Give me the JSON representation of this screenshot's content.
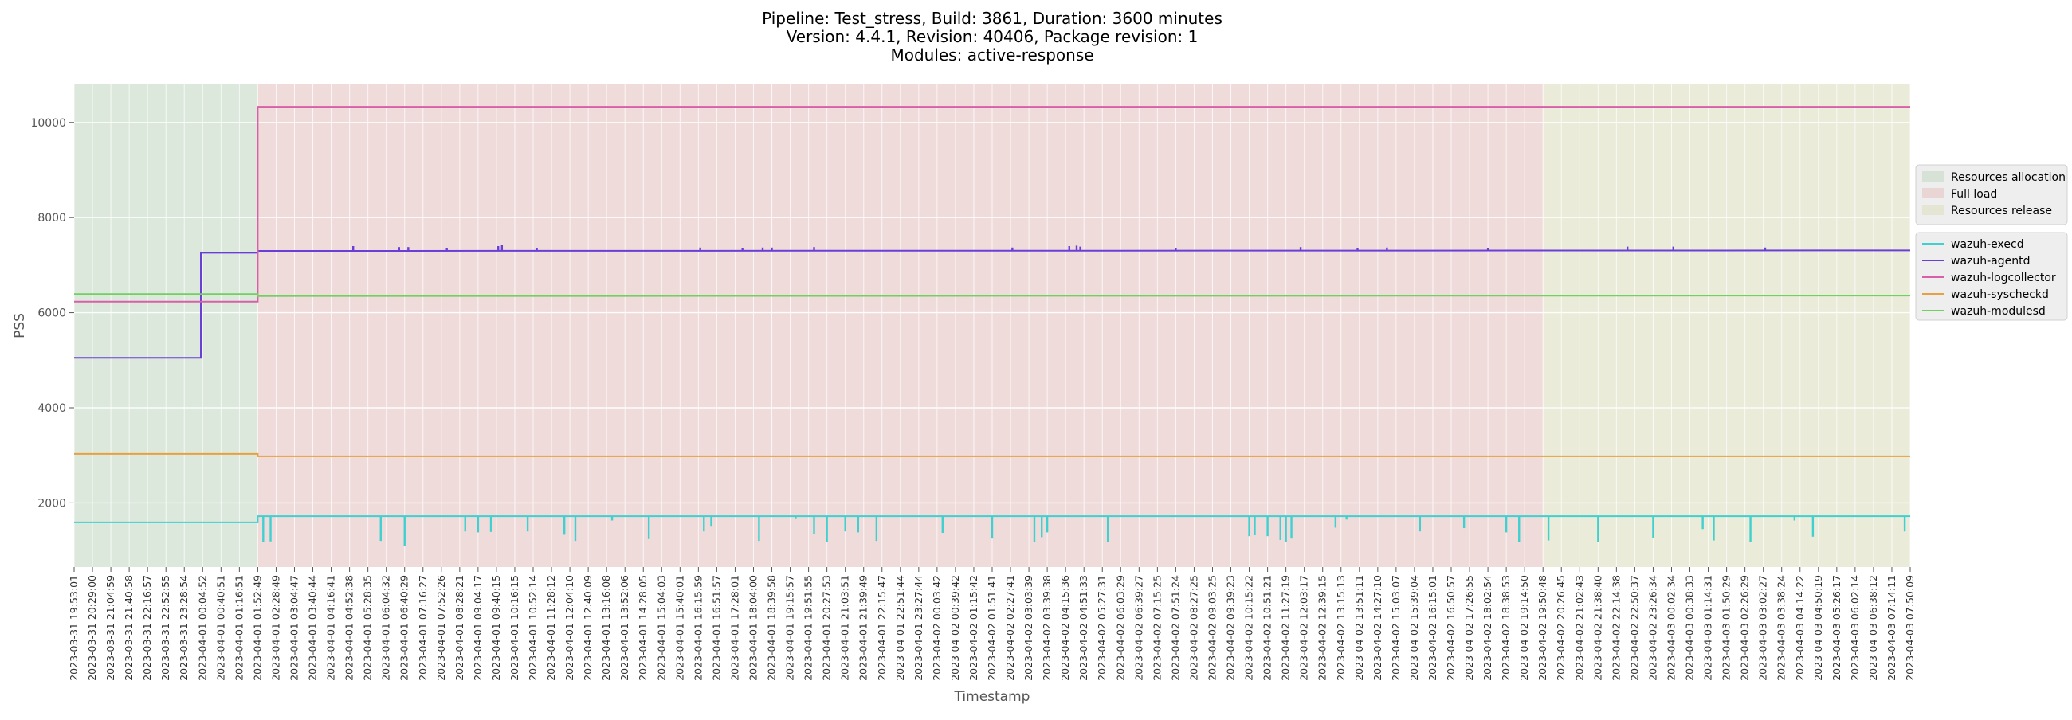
{
  "chart_data": {
    "type": "line",
    "title_lines": [
      "Pipeline: Test_stress, Build: 3861, Duration: 3600 minutes",
      "Version: 4.4.1, Revision: 40406, Package revision: 1",
      "Modules: active-response"
    ],
    "xlabel": "Timestamp",
    "ylabel": "PSS",
    "ylim": [
      650,
      10800
    ],
    "yticks": [
      2000,
      4000,
      6000,
      8000,
      10000
    ],
    "grid": true,
    "legend_placement": "right",
    "x_ticks": [
      "2023-03-31 19:53:01",
      "2023-03-31 20:29:00",
      "2023-03-31 21:04:59",
      "2023-03-31 21:40:58",
      "2023-03-31 22:16:57",
      "2023-03-31 22:52:55",
      "2023-03-31 23:28:54",
      "2023-04-01 00:04:52",
      "2023-04-01 00:40:51",
      "2023-04-01 01:16:51",
      "2023-04-01 01:52:49",
      "2023-04-01 02:28:49",
      "2023-04-01 03:04:47",
      "2023-04-01 03:40:44",
      "2023-04-01 04:16:41",
      "2023-04-01 04:52:38",
      "2023-04-01 05:28:35",
      "2023-04-01 06:04:32",
      "2023-04-01 06:40:29",
      "2023-04-01 07:16:27",
      "2023-04-01 07:52:26",
      "2023-04-01 08:28:21",
      "2023-04-01 09:04:17",
      "2023-04-01 09:40:15",
      "2023-04-01 10:16:15",
      "2023-04-01 10:52:14",
      "2023-04-01 11:28:12",
      "2023-04-01 12:04:10",
      "2023-04-01 12:40:09",
      "2023-04-01 13:16:08",
      "2023-04-01 13:52:06",
      "2023-04-01 14:28:05",
      "2023-04-01 15:04:03",
      "2023-04-01 15:40:01",
      "2023-04-01 16:15:59",
      "2023-04-01 16:51:57",
      "2023-04-01 17:28:01",
      "2023-04-01 18:04:00",
      "2023-04-01 18:39:58",
      "2023-04-01 19:15:57",
      "2023-04-01 19:51:55",
      "2023-04-01 20:27:53",
      "2023-04-01 21:03:51",
      "2023-04-01 21:39:49",
      "2023-04-01 22:15:47",
      "2023-04-01 22:51:44",
      "2023-04-01 23:27:44",
      "2023-04-02 00:03:42",
      "2023-04-02 00:39:42",
      "2023-04-02 01:15:42",
      "2023-04-02 01:51:41",
      "2023-04-02 02:27:41",
      "2023-04-02 03:03:39",
      "2023-04-02 03:39:38",
      "2023-04-02 04:15:36",
      "2023-04-02 04:51:33",
      "2023-04-02 05:27:31",
      "2023-04-02 06:03:29",
      "2023-04-02 06:39:27",
      "2023-04-02 07:15:25",
      "2023-04-02 07:51:24",
      "2023-04-02 08:27:25",
      "2023-04-02 09:03:25",
      "2023-04-02 09:39:23",
      "2023-04-02 10:15:22",
      "2023-04-02 10:51:21",
      "2023-04-02 11:27:19",
      "2023-04-02 12:03:17",
      "2023-04-02 12:39:15",
      "2023-04-02 13:15:13",
      "2023-04-02 13:51:11",
      "2023-04-02 14:27:10",
      "2023-04-02 15:03:07",
      "2023-04-02 15:39:04",
      "2023-04-02 16:15:01",
      "2023-04-02 16:50:57",
      "2023-04-02 17:26:55",
      "2023-04-02 18:02:54",
      "2023-04-02 18:38:53",
      "2023-04-02 19:14:50",
      "2023-04-02 19:50:48",
      "2023-04-02 20:26:45",
      "2023-04-02 21:02:43",
      "2023-04-02 21:38:40",
      "2023-04-02 22:14:38",
      "2023-04-02 22:50:37",
      "2023-04-02 23:26:34",
      "2023-04-03 00:02:34",
      "2023-04-03 00:38:33",
      "2023-04-03 01:14:31",
      "2023-04-03 01:50:29",
      "2023-04-03 02:26:29",
      "2023-04-03 03:02:27",
      "2023-04-03 03:38:24",
      "2023-04-03 04:14:22",
      "2023-04-03 04:50:19",
      "2023-04-03 05:26:17",
      "2023-04-03 06:02:14",
      "2023-04-03 06:38:12",
      "2023-04-03 07:14:11",
      "2023-04-03 07:50:09"
    ],
    "phases": [
      {
        "name": "Resources allocation",
        "start_tick": 0,
        "end_tick": 10,
        "color": "#c8dcc8"
      },
      {
        "name": "Full load",
        "start_tick": 10,
        "end_tick": 80,
        "color": "#e8c8c8"
      },
      {
        "name": "Resources release",
        "start_tick": 80,
        "end_tick": 100,
        "color": "#e0e0c4"
      }
    ],
    "series": [
      {
        "name": "wazuh-execd",
        "color": "#40d0d0",
        "points": [
          [
            0,
            1590
          ],
          [
            10,
            1590
          ],
          [
            10,
            1720
          ],
          [
            100,
            1720
          ]
        ],
        "dips": [
          [
            10.3,
            1180
          ],
          [
            10.7,
            1190
          ],
          [
            16.7,
            1200
          ],
          [
            18.0,
            1100
          ],
          [
            21.3,
            1400
          ],
          [
            22.0,
            1380
          ],
          [
            22.7,
            1390
          ],
          [
            24.7,
            1400
          ],
          [
            26.7,
            1330
          ],
          [
            27.3,
            1200
          ],
          [
            29.3,
            1630
          ],
          [
            31.3,
            1240
          ],
          [
            34.3,
            1400
          ],
          [
            34.7,
            1500
          ],
          [
            37.3,
            1200
          ],
          [
            39.3,
            1660
          ],
          [
            40.3,
            1340
          ],
          [
            41.0,
            1180
          ],
          [
            42.0,
            1400
          ],
          [
            42.7,
            1380
          ],
          [
            43.7,
            1200
          ],
          [
            47.3,
            1370
          ],
          [
            50.0,
            1250
          ],
          [
            52.3,
            1170
          ],
          [
            52.7,
            1280
          ],
          [
            53.0,
            1380
          ],
          [
            56.3,
            1170
          ],
          [
            64.0,
            1300
          ],
          [
            64.3,
            1320
          ],
          [
            65.0,
            1300
          ],
          [
            65.7,
            1220
          ],
          [
            66.0,
            1180
          ],
          [
            66.3,
            1250
          ],
          [
            68.7,
            1480
          ],
          [
            69.3,
            1650
          ],
          [
            73.3,
            1400
          ],
          [
            75.7,
            1470
          ],
          [
            78.0,
            1380
          ],
          [
            78.7,
            1180
          ],
          [
            80.3,
            1210
          ],
          [
            83.0,
            1180
          ],
          [
            86.0,
            1270
          ],
          [
            88.7,
            1450
          ],
          [
            89.3,
            1210
          ],
          [
            91.3,
            1180
          ],
          [
            93.7,
            1630
          ],
          [
            94.7,
            1290
          ],
          [
            99.7,
            1400
          ]
        ]
      },
      {
        "name": "wazuh-agentd",
        "color": "#6a3fd8",
        "points": [
          [
            0,
            5050
          ],
          [
            6.9,
            5050
          ],
          [
            6.9,
            7260
          ],
          [
            10,
            7260
          ],
          [
            10,
            7300
          ],
          [
            100,
            7310
          ]
        ],
        "spikes": [
          [
            15.2,
            7400
          ],
          [
            17.7,
            7380
          ],
          [
            18.2,
            7380
          ],
          [
            20.3,
            7360
          ],
          [
            23.1,
            7400
          ],
          [
            23.3,
            7420
          ],
          [
            25.2,
            7350
          ],
          [
            34.1,
            7370
          ],
          [
            36.4,
            7360
          ],
          [
            37.5,
            7370
          ],
          [
            38.0,
            7370
          ],
          [
            40.3,
            7380
          ],
          [
            51.1,
            7370
          ],
          [
            54.2,
            7400
          ],
          [
            54.6,
            7410
          ],
          [
            54.8,
            7390
          ],
          [
            60.0,
            7350
          ],
          [
            66.8,
            7380
          ],
          [
            69.9,
            7360
          ],
          [
            71.5,
            7370
          ],
          [
            77.0,
            7360
          ],
          [
            84.6,
            7390
          ],
          [
            87.1,
            7390
          ],
          [
            92.1,
            7370
          ]
        ]
      },
      {
        "name": "wazuh-logcollector",
        "color": "#d85fa8",
        "points": [
          [
            0,
            6230
          ],
          [
            10,
            6230
          ],
          [
            10,
            10330
          ],
          [
            100,
            10330
          ]
        ]
      },
      {
        "name": "wazuh-syscheckd",
        "color": "#e8a040",
        "points": [
          [
            0,
            3030
          ],
          [
            10,
            3030
          ],
          [
            10,
            2980
          ],
          [
            100,
            2980
          ]
        ]
      },
      {
        "name": "wazuh-modulesd",
        "color": "#70d060",
        "points": [
          [
            0,
            6390
          ],
          [
            10,
            6390
          ],
          [
            10,
            6350
          ],
          [
            100,
            6360
          ]
        ]
      }
    ]
  }
}
